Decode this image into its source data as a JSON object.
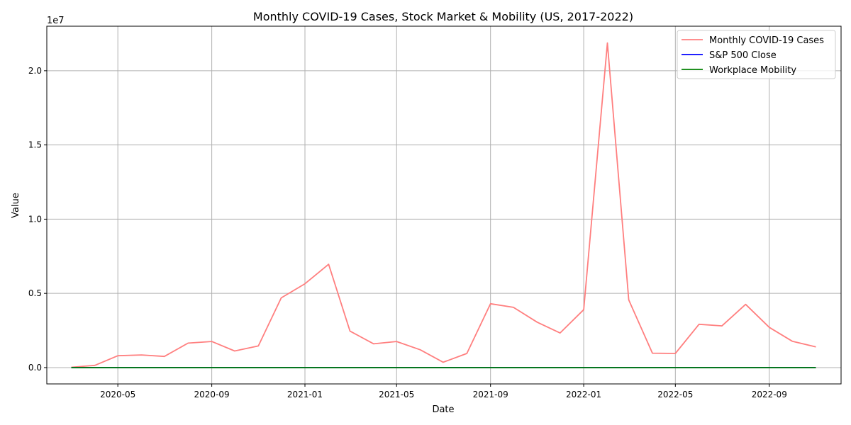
{
  "chart_data": {
    "type": "line",
    "title": "Monthly COVID-19 Cases, Stock Market & Mobility (US, 2017-2022)",
    "xlabel": "Date",
    "ylabel": "Value",
    "y_offset_label": "1e7",
    "x": [
      "2020-03-01",
      "2020-04-01",
      "2020-05-01",
      "2020-06-01",
      "2020-07-01",
      "2020-08-01",
      "2020-09-01",
      "2020-10-01",
      "2020-11-01",
      "2020-12-01",
      "2021-01-01",
      "2021-02-01",
      "2021-03-01",
      "2021-04-01",
      "2021-05-01",
      "2021-06-01",
      "2021-07-01",
      "2021-08-01",
      "2021-09-01",
      "2021-10-01",
      "2021-11-01",
      "2021-12-01",
      "2022-01-01",
      "2022-02-01",
      "2022-03-01",
      "2022-04-01",
      "2022-05-01",
      "2022-06-01",
      "2022-07-01",
      "2022-08-01",
      "2022-09-01",
      "2022-10-01",
      "2022-11-01"
    ],
    "x_ticks": [
      {
        "date": "2020-05-01",
        "label": "2020-05"
      },
      {
        "date": "2020-09-01",
        "label": "2020-09"
      },
      {
        "date": "2021-01-01",
        "label": "2021-01"
      },
      {
        "date": "2021-05-01",
        "label": "2021-05"
      },
      {
        "date": "2021-09-01",
        "label": "2021-09"
      },
      {
        "date": "2022-01-01",
        "label": "2022-01"
      },
      {
        "date": "2022-05-01",
        "label": "2022-05"
      },
      {
        "date": "2022-09-01",
        "label": "2022-09"
      }
    ],
    "y_ticks": [
      {
        "value": 0,
        "label": "0.0"
      },
      {
        "value": 5000000,
        "label": "0.5"
      },
      {
        "value": 10000000,
        "label": "1.0"
      },
      {
        "value": 15000000,
        "label": "1.5"
      },
      {
        "value": 20000000,
        "label": "2.0"
      }
    ],
    "ylim": [
      -1100000,
      23000000
    ],
    "xlim": [
      "2020-01-29",
      "2022-12-04"
    ],
    "grid": true,
    "legend_position": "top-right",
    "series": [
      {
        "name": "Monthly COVID-19 Cases",
        "color": "#ff7f7f",
        "values": [
          20000,
          150000,
          800000,
          850000,
          750000,
          1650000,
          1760000,
          1120000,
          1460000,
          4700000,
          5650000,
          6960000,
          2460000,
          1600000,
          1760000,
          1200000,
          360000,
          950000,
          4300000,
          4060000,
          3060000,
          2330000,
          3900000,
          21870000,
          4560000,
          970000,
          950000,
          2920000,
          2810000,
          4260000,
          2710000,
          1780000,
          1390000
        ]
      },
      {
        "name": "S&P 500 Close",
        "color": "#0000ff",
        "values": [
          2585,
          2912,
          3044,
          3100,
          3271,
          3500,
          3363,
          3270,
          3622,
          3756,
          3714,
          3811,
          3973,
          4181,
          4204,
          4298,
          4395,
          4523,
          4308,
          4605,
          4567,
          4766,
          4516,
          4374,
          4530,
          4132,
          4132,
          3785,
          4130,
          3955,
          3586,
          3872,
          4080
        ]
      },
      {
        "name": "Workplace Mobility",
        "color": "#008000",
        "values": [
          -10,
          -45,
          -38,
          -30,
          -30,
          -32,
          -30,
          -30,
          -28,
          -35,
          -28,
          -25,
          -22,
          -22,
          -20,
          -20,
          -22,
          -22,
          -20,
          -18,
          -18,
          -22,
          -25,
          -20,
          -18,
          -15,
          -15,
          -18,
          -20,
          -18,
          -15,
          -15,
          -15
        ]
      }
    ]
  }
}
